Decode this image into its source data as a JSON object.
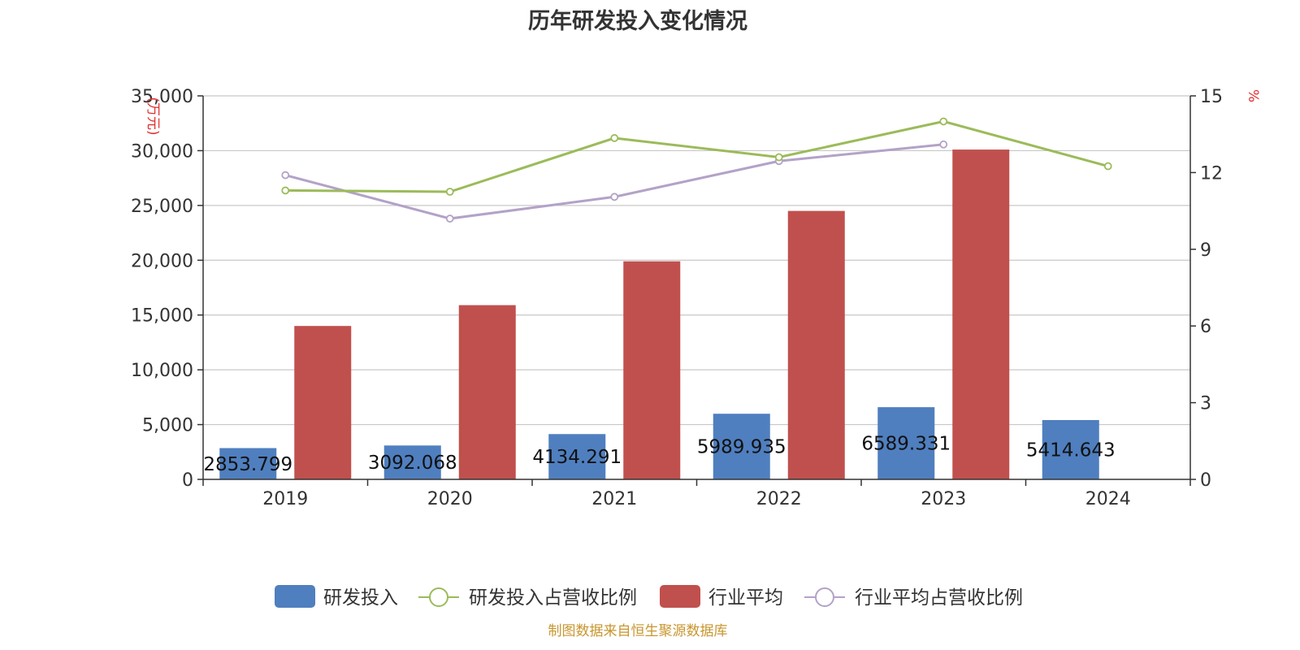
{
  "title": "历年研发投入变化情况",
  "source": "制图数据来自恒生聚源数据库",
  "colors": {
    "rd_bar": "#4f7fbf",
    "industry_bar": "#c0504d",
    "rd_ratio_line": "#9bbb59",
    "industry_ratio_line": "#b3a2c7",
    "grid": "#c8c8c8",
    "axis": "#333333",
    "unit_text": "#e03030",
    "source_text": "#c8962e"
  },
  "chart_data": {
    "type": "bar",
    "title": "历年研发投入变化情况",
    "categories": [
      "2019",
      "2020",
      "2021",
      "2022",
      "2023",
      "2024"
    ],
    "left_axis": {
      "unit": "(万元)",
      "ylim": [
        0,
        35000
      ],
      "ticks": [
        "0",
        "5,000",
        "10,000",
        "15,000",
        "20,000",
        "25,000",
        "30,000",
        "35,000"
      ]
    },
    "right_axis": {
      "unit": "%",
      "ylim": [
        0,
        15
      ],
      "ticks": [
        "0",
        "3",
        "6",
        "9",
        "12",
        "15"
      ]
    },
    "series": [
      {
        "name": "研发投入",
        "kind": "bar",
        "axis": "left",
        "values": [
          2853.799,
          3092.068,
          4134.291,
          5989.935,
          6589.331,
          5414.643
        ],
        "labels": [
          "2853.799",
          "3092.068",
          "4134.291",
          "5989.935",
          "6589.331",
          "5414.643"
        ]
      },
      {
        "name": "研发投入占营收比例",
        "kind": "line",
        "axis": "right",
        "values": [
          11.3,
          11.25,
          13.35,
          12.6,
          14.0,
          12.25
        ]
      },
      {
        "name": "行业平均",
        "kind": "bar",
        "axis": "left",
        "values": [
          14000,
          15900,
          19900,
          24500,
          30100,
          null
        ]
      },
      {
        "name": "行业平均占营收比例",
        "kind": "line",
        "axis": "right",
        "values": [
          11.9,
          10.2,
          11.05,
          12.45,
          13.1,
          null
        ]
      }
    ],
    "grid": true,
    "legend_position": "bottom"
  }
}
